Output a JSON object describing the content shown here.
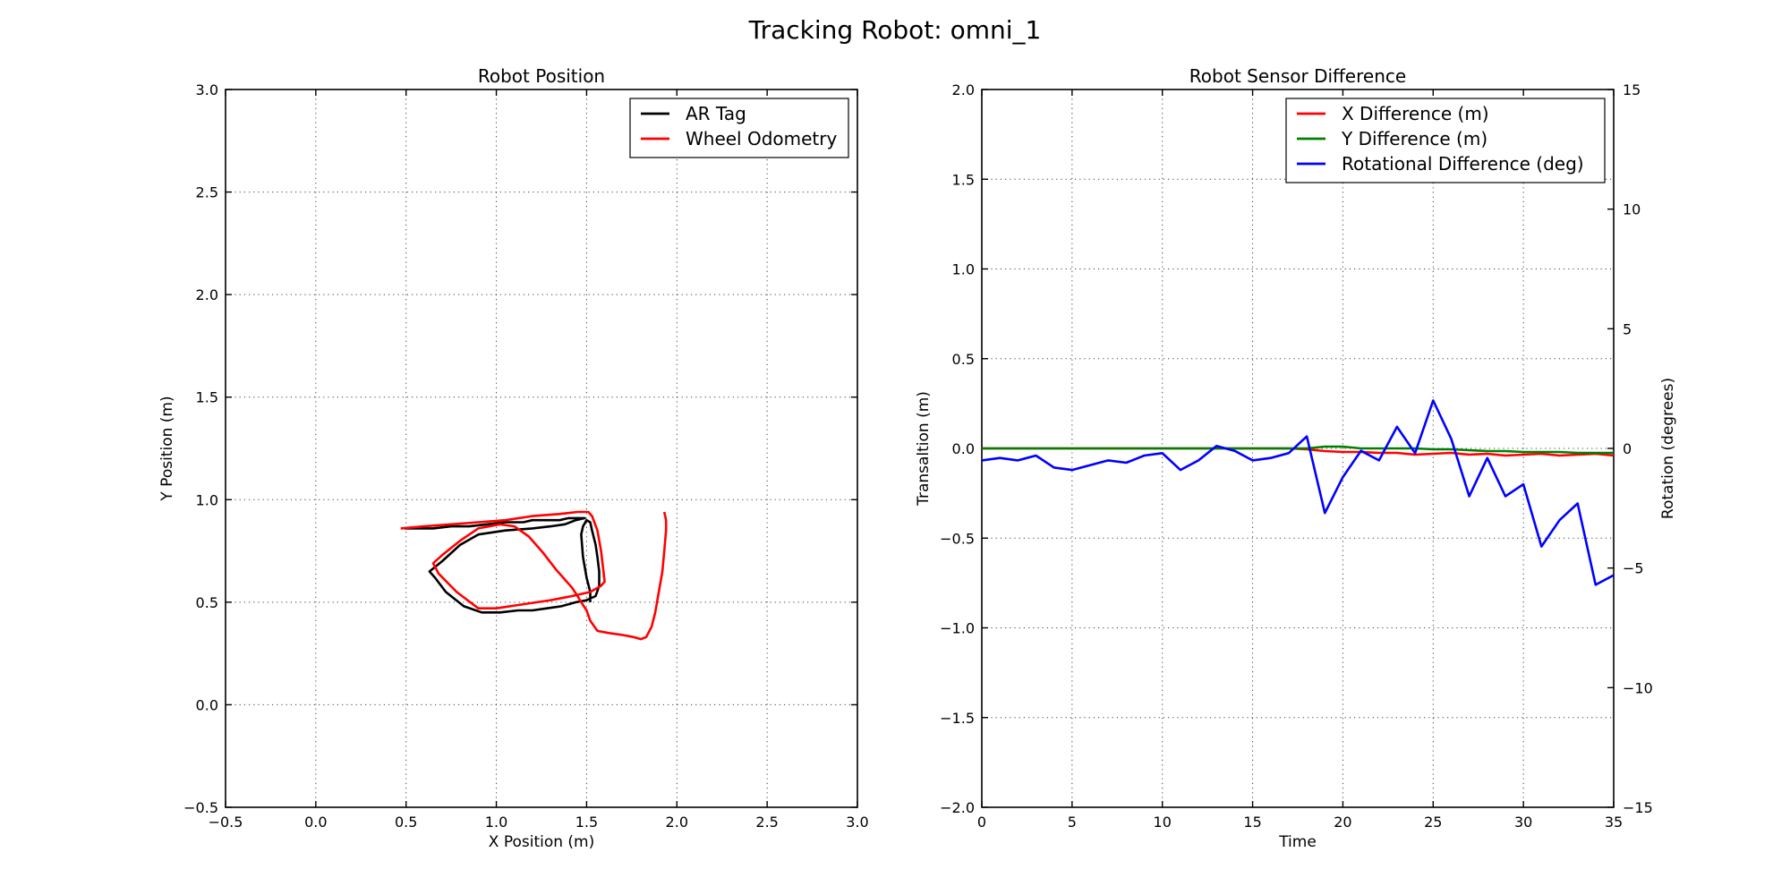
{
  "figure_title": "Tracking Robot: omni_1",
  "chart_data": [
    {
      "type": "line",
      "title": "Robot Position",
      "xlabel": "X Position (m)",
      "ylabel": "Y Position (m)",
      "xlim": [
        -0.5,
        3.0
      ],
      "ylim": [
        -0.5,
        3.0
      ],
      "xticks": [
        -0.5,
        0.0,
        0.5,
        1.0,
        1.5,
        2.0,
        2.5,
        3.0
      ],
      "yticks": [
        -0.5,
        0.0,
        0.5,
        1.0,
        1.5,
        2.0,
        2.5,
        3.0
      ],
      "grid": true,
      "legend_position": "top-right",
      "series": [
        {
          "name": "AR Tag",
          "color": "#000000",
          "x": [
            0.49,
            0.55,
            0.65,
            0.75,
            0.85,
            0.95,
            1.05,
            1.1,
            1.15,
            1.2,
            1.25,
            1.3,
            1.35,
            1.4,
            1.43,
            1.46,
            1.49,
            1.44,
            1.38,
            1.3,
            1.2,
            1.05,
            0.9,
            0.8,
            0.7,
            0.63,
            0.66,
            0.72,
            0.82,
            0.92,
            1.02,
            1.12,
            1.2,
            1.28,
            1.36,
            1.44,
            1.5,
            1.55,
            1.57,
            1.57,
            1.56,
            1.55,
            1.53,
            1.52,
            1.5,
            1.48,
            1.47,
            1.48,
            1.5,
            1.52,
            1.52
          ],
          "y": [
            0.86,
            0.86,
            0.86,
            0.87,
            0.87,
            0.88,
            0.89,
            0.89,
            0.89,
            0.9,
            0.9,
            0.9,
            0.9,
            0.91,
            0.91,
            0.91,
            0.91,
            0.9,
            0.88,
            0.87,
            0.86,
            0.85,
            0.83,
            0.78,
            0.7,
            0.65,
            0.62,
            0.55,
            0.48,
            0.45,
            0.45,
            0.46,
            0.46,
            0.47,
            0.48,
            0.5,
            0.51,
            0.53,
            0.58,
            0.65,
            0.72,
            0.78,
            0.85,
            0.89,
            0.9,
            0.87,
            0.83,
            0.72,
            0.62,
            0.55,
            0.5
          ]
        },
        {
          "name": "Wheel Odometry",
          "color": "#ff0000",
          "x": [
            0.47,
            0.6,
            0.75,
            0.9,
            1.05,
            1.2,
            1.35,
            1.45,
            1.51,
            1.53,
            1.56,
            1.58,
            1.6,
            1.58,
            1.52,
            1.42,
            1.3,
            1.15,
            1.0,
            0.9,
            0.78,
            0.68,
            0.65,
            0.7,
            0.8,
            0.9,
            1.02,
            1.1,
            1.18,
            1.26,
            1.33,
            1.39,
            1.42,
            1.45,
            1.47,
            1.5,
            1.52,
            1.56,
            1.62,
            1.7,
            1.76,
            1.8,
            1.83,
            1.86,
            1.88,
            1.9,
            1.92,
            1.93,
            1.94,
            1.94,
            1.93
          ],
          "y": [
            0.86,
            0.87,
            0.88,
            0.89,
            0.9,
            0.92,
            0.93,
            0.94,
            0.94,
            0.92,
            0.85,
            0.75,
            0.6,
            0.58,
            0.55,
            0.53,
            0.51,
            0.49,
            0.47,
            0.47,
            0.55,
            0.64,
            0.69,
            0.73,
            0.8,
            0.86,
            0.88,
            0.87,
            0.82,
            0.74,
            0.66,
            0.6,
            0.57,
            0.53,
            0.5,
            0.46,
            0.41,
            0.36,
            0.35,
            0.34,
            0.33,
            0.32,
            0.33,
            0.38,
            0.45,
            0.55,
            0.65,
            0.75,
            0.85,
            0.9,
            0.94
          ]
        }
      ]
    },
    {
      "type": "line",
      "title": "Robot Sensor Difference",
      "xlabel": "Time",
      "ylabel": "Transaltion (m)",
      "ylabel_right": "Rotation (degrees)",
      "xlim": [
        0,
        35
      ],
      "ylim": [
        -2.0,
        2.0
      ],
      "ylim_right": [
        -15,
        15
      ],
      "xticks": [
        0,
        5,
        10,
        15,
        20,
        25,
        30,
        35
      ],
      "yticks": [
        -2.0,
        -1.5,
        -1.0,
        -0.5,
        0.0,
        0.5,
        1.0,
        1.5,
        2.0
      ],
      "yticks_right": [
        -15,
        -10,
        -5,
        0,
        5,
        10,
        15
      ],
      "grid": true,
      "legend_position": "top-right",
      "x": [
        0,
        1,
        2,
        3,
        4,
        5,
        6,
        7,
        8,
        9,
        10,
        11,
        12,
        13,
        14,
        15,
        16,
        17,
        18,
        19,
        20,
        21,
        22,
        23,
        24,
        25,
        26,
        27,
        28,
        29,
        30,
        31,
        32,
        33,
        34,
        35
      ],
      "series": [
        {
          "name": "X Difference (m)",
          "color": "#ff0000",
          "axis": "left",
          "values": [
            0.0,
            0.0,
            0.0,
            0.0,
            0.0,
            0.0,
            0.0,
            0.0,
            0.0,
            0.0,
            0.0,
            0.0,
            0.0,
            0.0,
            0.0,
            0.0,
            0.0,
            0.0,
            -0.005,
            -0.015,
            -0.02,
            -0.02,
            -0.025,
            -0.025,
            -0.035,
            -0.03,
            -0.025,
            -0.035,
            -0.03,
            -0.04,
            -0.035,
            -0.03,
            -0.04,
            -0.035,
            -0.03,
            -0.04
          ]
        },
        {
          "name": "Y Difference (m)",
          "color": "#008000",
          "axis": "left",
          "values": [
            0.0,
            0.0,
            0.0,
            0.0,
            0.0,
            0.0,
            0.0,
            0.0,
            0.0,
            0.0,
            0.0,
            0.0,
            0.0,
            0.0,
            0.0,
            0.0,
            0.0,
            0.0,
            0.0,
            0.01,
            0.01,
            0.0,
            0.0,
            0.0,
            0.0,
            -0.005,
            -0.005,
            -0.01,
            -0.015,
            -0.015,
            -0.02,
            -0.02,
            -0.02,
            -0.025,
            -0.025,
            -0.025
          ]
        },
        {
          "name": "Rotational Difference (deg)",
          "color": "#0000ff",
          "axis": "right",
          "values": [
            -0.5,
            -0.4,
            -0.5,
            -0.3,
            -0.8,
            -0.9,
            -0.7,
            -0.5,
            -0.6,
            -0.3,
            -0.2,
            -0.9,
            -0.5,
            0.1,
            -0.1,
            -0.5,
            -0.4,
            -0.2,
            0.5,
            -2.7,
            -1.2,
            -0.1,
            -0.5,
            0.9,
            -0.2,
            2.0,
            0.4,
            -2.0,
            -0.4,
            -2.0,
            -1.5,
            -4.1,
            -3.0,
            -2.3,
            -5.7,
            -5.3
          ]
        }
      ]
    }
  ]
}
